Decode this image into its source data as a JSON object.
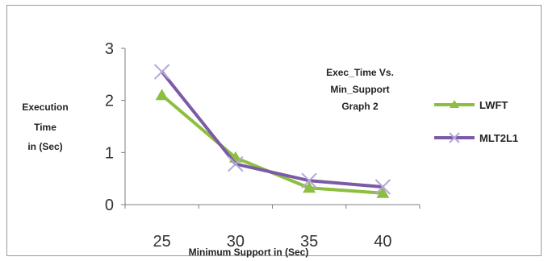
{
  "chart_data": {
    "type": "line",
    "title": "",
    "annotation": [
      "Exec_Time Vs.",
      "Min_Support",
      "Graph 2"
    ],
    "xlabel": "Minimum Support in (Sec)",
    "ylabel": [
      "Execution",
      "Time",
      "in (Sec)"
    ],
    "categories": [
      "25",
      "30",
      "35",
      "40"
    ],
    "ylim": [
      0,
      3
    ],
    "yticks": [
      "0",
      "1",
      "2",
      "3"
    ],
    "grid": false,
    "legend_position": "right",
    "series": [
      {
        "name": "LWFT",
        "values": [
          2.1,
          0.9,
          0.32,
          0.22
        ],
        "color": "#8cbf3f",
        "marker": "triangle"
      },
      {
        "name": "MLT2L1",
        "values": [
          2.55,
          0.78,
          0.46,
          0.34
        ],
        "color": "#7b5aa6",
        "marker": "x"
      }
    ]
  }
}
